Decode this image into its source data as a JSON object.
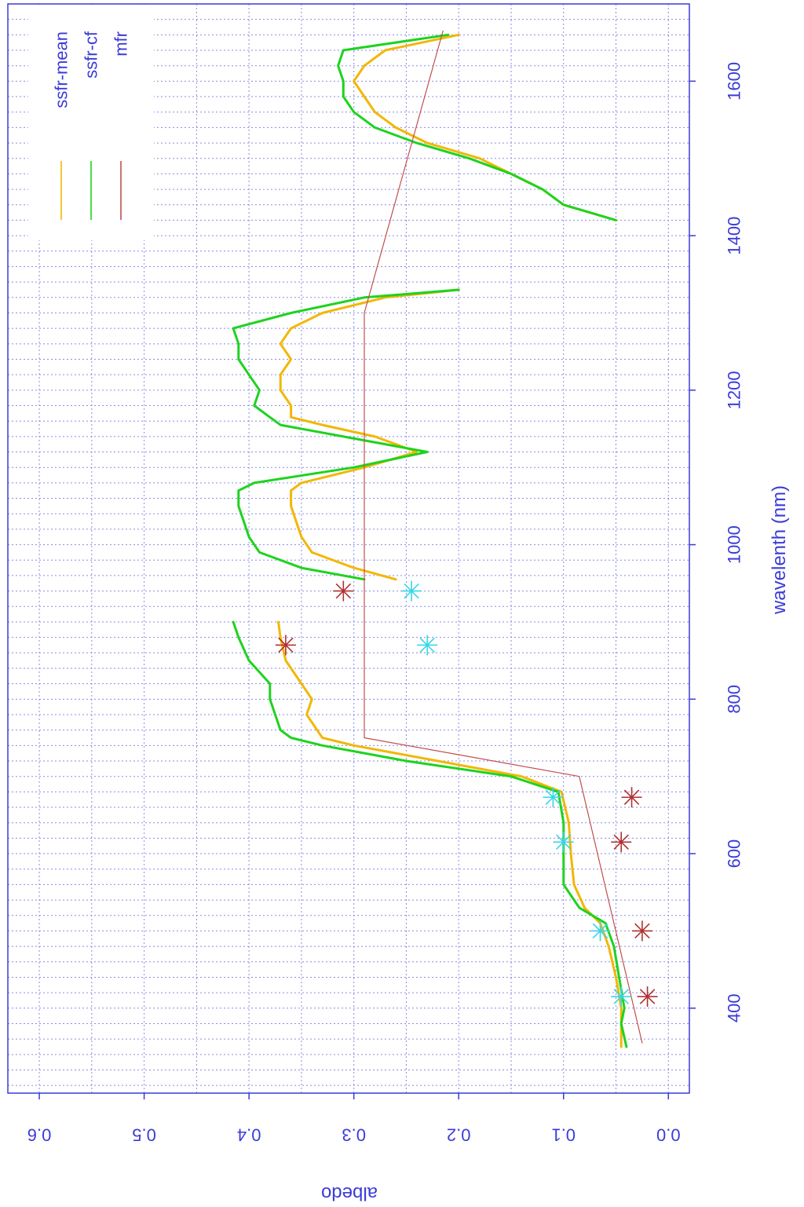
{
  "chart_data": {
    "type": "line",
    "orientation": "rotated-90-clockwise",
    "xlabel": "wavelenth (nm)",
    "ylabel": "albedo",
    "xlim": [
      290,
      1700
    ],
    "ylim": [
      -0.02,
      0.63
    ],
    "x_ticks": [
      400,
      600,
      800,
      1000,
      1200,
      1400,
      1600
    ],
    "x_tick_labels": [
      "400",
      "600",
      "800",
      "1000",
      "1200",
      "1400",
      "1600"
    ],
    "y_ticks": [
      0.0,
      0.1,
      0.2,
      0.3,
      0.4,
      0.5,
      0.6
    ],
    "y_tick_labels": [
      "0.0",
      "0.1",
      "0.2",
      "0.3",
      "0.4",
      "0.5",
      "0.6"
    ],
    "grid": true,
    "legend_position": "top-right",
    "colors": {
      "axis": "#3b3bd9",
      "grid": "#8a8ae6",
      "ssfr_mean": "#f2b705",
      "ssfr_cf": "#1ed31e",
      "mfr": "#c0504d",
      "mfr_star": "#b03030",
      "cyan_star": "#39d5e8"
    },
    "series": [
      {
        "name": "ssfr-mean",
        "color": "#f2b705",
        "x": [
          350,
          380,
          400,
          440,
          480,
          510,
          530,
          560,
          600,
          640,
          680,
          700,
          720,
          740,
          750,
          760,
          780,
          800,
          820,
          850,
          880,
          900,
          null,
          955,
          970,
          990,
          1010,
          1030,
          1050,
          1070,
          1080,
          1100,
          1120,
          1140,
          1155,
          1165,
          1180,
          1200,
          1220,
          1240,
          1260,
          1280,
          1300,
          1320,
          1330,
          null,
          1420,
          1440,
          1460,
          1480,
          1500,
          1520,
          1540,
          1560,
          1580,
          1600,
          1620,
          1640,
          1660
        ],
        "y": [
          0.045,
          0.045,
          0.045,
          0.05,
          0.057,
          0.065,
          0.08,
          0.09,
          0.093,
          0.095,
          0.102,
          0.14,
          0.22,
          0.3,
          0.33,
          0.335,
          0.345,
          0.34,
          0.35,
          0.365,
          0.37,
          0.372,
          null,
          0.26,
          0.3,
          0.34,
          0.35,
          0.355,
          0.36,
          0.36,
          0.35,
          0.29,
          0.24,
          0.28,
          0.33,
          0.36,
          0.36,
          0.37,
          0.37,
          0.36,
          0.37,
          0.36,
          0.33,
          0.27,
          0.2,
          null,
          0.05,
          0.1,
          0.12,
          0.15,
          0.18,
          0.23,
          0.26,
          0.28,
          0.29,
          0.3,
          0.29,
          0.27,
          0.2
        ]
      },
      {
        "name": "ssfr-cf",
        "color": "#1ed31e",
        "x": [
          350,
          380,
          400,
          440,
          480,
          510,
          530,
          560,
          600,
          640,
          680,
          700,
          720,
          740,
          750,
          760,
          780,
          800,
          820,
          850,
          880,
          900,
          null,
          955,
          970,
          990,
          1010,
          1030,
          1050,
          1070,
          1080,
          1100,
          1120,
          1140,
          1155,
          1165,
          1180,
          1200,
          1220,
          1240,
          1260,
          1280,
          1300,
          1320,
          1330,
          null,
          1420,
          1440,
          1460,
          1480,
          1500,
          1520,
          1540,
          1560,
          1580,
          1600,
          1620,
          1640,
          1660
        ],
        "y": [
          0.04,
          0.045,
          0.042,
          0.047,
          0.052,
          0.06,
          0.085,
          0.1,
          0.1,
          0.1,
          0.105,
          0.15,
          0.25,
          0.33,
          0.36,
          0.37,
          0.375,
          0.38,
          0.38,
          0.4,
          0.41,
          0.415,
          null,
          0.29,
          0.35,
          0.39,
          0.4,
          0.405,
          0.41,
          0.41,
          0.395,
          0.3,
          0.23,
          0.31,
          0.37,
          0.38,
          0.395,
          0.39,
          0.4,
          0.41,
          0.41,
          0.415,
          0.36,
          0.29,
          0.2,
          null,
          0.05,
          0.1,
          0.12,
          0.15,
          0.19,
          0.24,
          0.28,
          0.3,
          0.31,
          0.31,
          0.315,
          0.31,
          0.21
        ]
      },
      {
        "name": "mfr",
        "color": "#c0504d",
        "x": [
          355,
          700,
          750,
          1300,
          1665
        ],
        "y": [
          0.025,
          0.085,
          0.29,
          0.29,
          0.215
        ]
      }
    ],
    "mfr_stars": {
      "color": "#b03030",
      "x": [
        415,
        500,
        615,
        673,
        870,
        940
      ],
      "y": [
        0.02,
        0.025,
        0.045,
        0.035,
        0.365,
        0.31
      ]
    },
    "cyan_stars": {
      "color": "#39d5e8",
      "x": [
        415,
        500,
        615,
        673,
        870,
        940
      ],
      "y": [
        0.045,
        0.065,
        0.1,
        0.11,
        0.23,
        0.245
      ]
    },
    "legend": [
      {
        "label": "ssfr-mean",
        "color": "#f2b705"
      },
      {
        "label": "ssfr-cf",
        "color": "#1ed31e"
      },
      {
        "label": "mfr",
        "color": "#c0504d"
      }
    ]
  }
}
